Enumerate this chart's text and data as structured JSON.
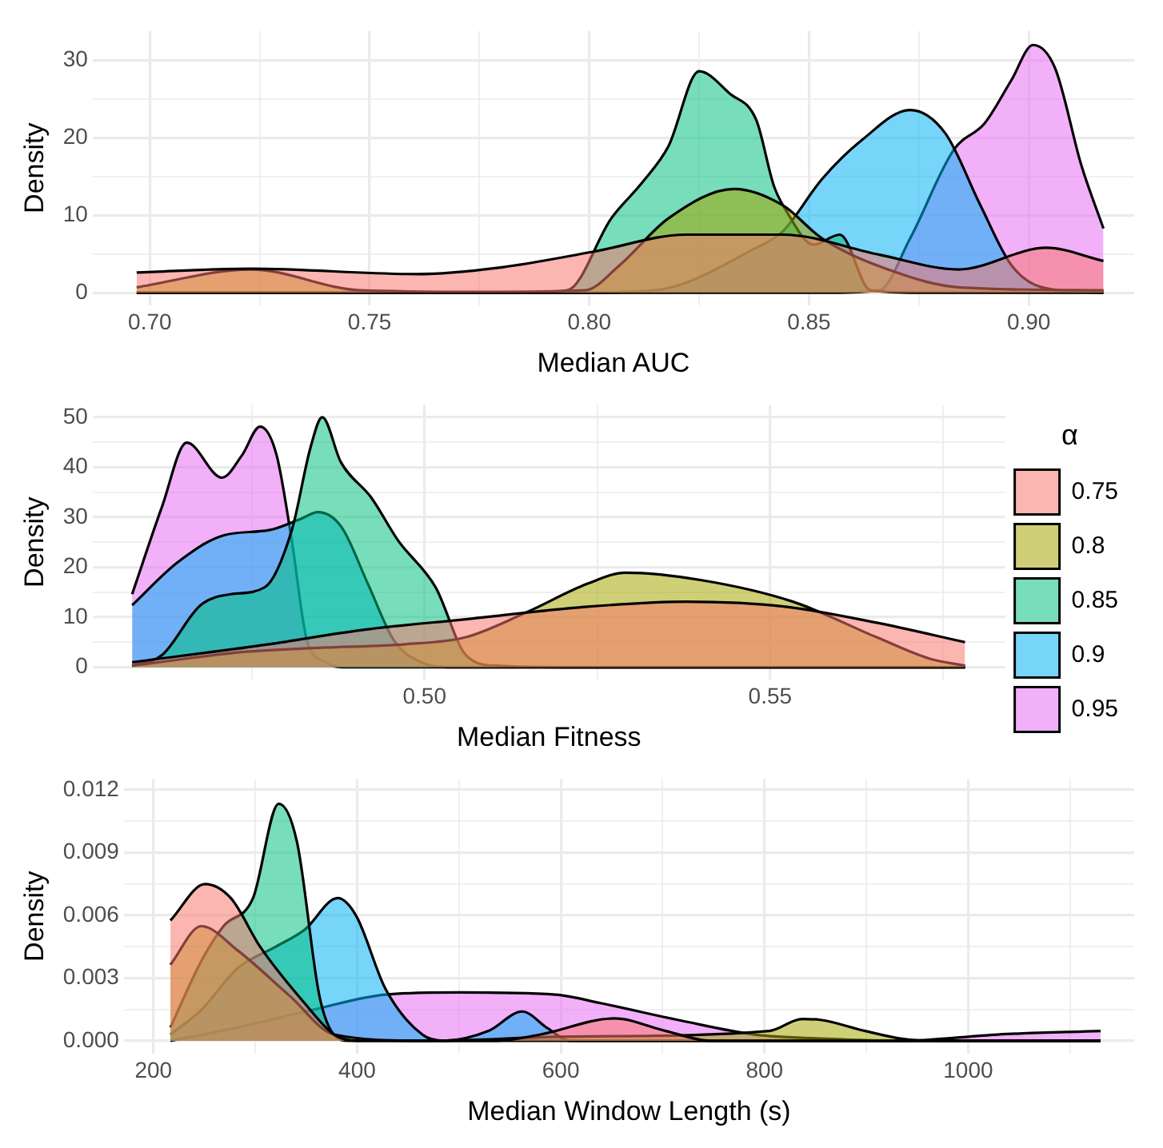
{
  "chart_data": [
    {
      "type": "area",
      "xlabel": "Median AUC",
      "ylabel": "Density",
      "grid": true,
      "xlim": [
        0.687,
        0.924
      ],
      "ylim": [
        -1.6,
        33.8
      ],
      "xticks": [
        {
          "value": 0.7,
          "label": "0.70"
        },
        {
          "value": 0.725,
          "label": null
        },
        0.75,
        {
          "value": 0.775,
          "label": null
        },
        {
          "value": 0.8,
          "label": "0.80"
        },
        {
          "value": 0.825,
          "label": null
        },
        0.85,
        {
          "value": 0.875,
          "label": null
        },
        {
          "value": 0.9,
          "label": "0.90"
        }
      ],
      "yticks": [
        0,
        {
          "value": 5,
          "label": null
        },
        10,
        {
          "value": 15,
          "label": null
        },
        20,
        {
          "value": 25,
          "label": null
        },
        30
      ],
      "series": [
        {
          "color": "#f8766d",
          "x": [
            0.697,
            0.723,
            0.761,
            0.779,
            0.801,
            0.822,
            0.844,
            0.866,
            0.884,
            0.904,
            0.917
          ],
          "values": [
            2.6,
            3.1,
            2.4,
            3.2,
            5.3,
            7.5,
            7.5,
            4.9,
            3.0,
            5.8,
            4.1
          ]
        },
        {
          "color": "#a3a500",
          "x": [
            0.697,
            0.723,
            0.748,
            0.776,
            0.799,
            0.807,
            0.818,
            0.833,
            0.844,
            0.853,
            0.869,
            0.884,
            0.917
          ],
          "values": [
            0.7,
            3.0,
            0.3,
            0.1,
            0.3,
            3.6,
            9.6,
            13.4,
            11.3,
            7.0,
            2.8,
            0.7,
            0.3
          ]
        },
        {
          "color": "#00bf7d",
          "x": [
            0.697,
            0.785,
            0.795,
            0.805,
            0.812,
            0.818,
            0.825,
            0.832,
            0.838,
            0.842,
            0.845,
            0.851,
            0.857,
            0.864,
            0.875,
            0.917
          ],
          "values": [
            0,
            0,
            0.3,
            9.6,
            14.2,
            18.9,
            28.6,
            25.7,
            22.3,
            13.8,
            10.4,
            6.2,
            7.5,
            0.3,
            0,
            0
          ]
        },
        {
          "color": "#00b0f6",
          "x": [
            0.697,
            0.8,
            0.815,
            0.838,
            0.844,
            0.853,
            0.862,
            0.873,
            0.881,
            0.889,
            0.896,
            0.903,
            0.917
          ],
          "values": [
            0,
            0,
            0.3,
            5.8,
            7.9,
            14.7,
            19.7,
            23.6,
            20.6,
            11.3,
            3.6,
            0.7,
            0
          ]
        },
        {
          "color": "#e76bf3",
          "x": [
            0.697,
            0.855,
            0.866,
            0.873,
            0.883,
            0.89,
            0.896,
            0.901,
            0.906,
            0.912,
            0.917
          ],
          "values": [
            0,
            0,
            0.3,
            7.0,
            18.5,
            21.9,
            27.4,
            32.0,
            29.0,
            16.4,
            8.3
          ]
        }
      ]
    },
    {
      "type": "area",
      "xlabel": "Median Fitness",
      "ylabel": "Density",
      "grid": true,
      "legend": "right",
      "legend_title": "α",
      "xlim": [
        0.452,
        0.584
      ],
      "ylim": [
        -2.4,
        52.4
      ],
      "xticks": [
        {
          "value": 0.475,
          "label": null
        },
        {
          "value": 0.5,
          "label": "0.50"
        },
        {
          "value": 0.525,
          "label": null
        },
        0.55,
        {
          "value": 0.575,
          "label": null
        }
      ],
      "yticks": [
        0,
        {
          "value": 5,
          "label": null
        },
        10,
        {
          "value": 15,
          "label": null
        },
        20,
        {
          "value": 25,
          "label": null
        },
        30,
        {
          "value": 35,
          "label": null
        },
        40,
        {
          "value": 45,
          "label": null
        },
        50
      ],
      "series": [
        {
          "name": "0.75",
          "color": "#f8766d",
          "x": [
            0.4577,
            0.4775,
            0.4907,
            0.506,
            0.5236,
            0.5379,
            0.5522,
            0.5654,
            0.5782
          ],
          "values": [
            1,
            4.6,
            7.4,
            9.6,
            12.1,
            13.1,
            12.1,
            8.9,
            5
          ]
        },
        {
          "name": "0.8",
          "color": "#a3a500",
          "x": [
            0.4577,
            0.4742,
            0.4852,
            0.4973,
            0.506,
            0.5148,
            0.5236,
            0.5291,
            0.5401,
            0.5533,
            0.5654,
            0.5731,
            0.5782
          ],
          "values": [
            0.3,
            3.1,
            3.9,
            4.6,
            6,
            11,
            16.7,
            18.9,
            17.4,
            13.1,
            6,
            1.7,
            0.3
          ]
        },
        {
          "name": "0.85",
          "color": "#00bf7d",
          "x": [
            0.4577,
            0.462,
            0.4676,
            0.472,
            0.4769,
            0.4808,
            0.4835,
            0.4852,
            0.4879,
            0.4923,
            0.4962,
            0.5016,
            0.506,
            0.5104,
            0.52,
            0.5782
          ],
          "values": [
            0.3,
            2.4,
            12.4,
            14.6,
            16,
            27.4,
            43.9,
            50,
            41,
            33.9,
            25.3,
            16,
            2.4,
            0.3,
            0,
            0
          ]
        },
        {
          "name": "0.9",
          "color": "#00b0f6",
          "x": [
            0.4577,
            0.4643,
            0.471,
            0.4775,
            0.482,
            0.4846,
            0.488,
            0.4918,
            0.4956,
            0.4995,
            0.504,
            0.5782
          ],
          "values": [
            12.4,
            21,
            26.4,
            27.4,
            29.6,
            31,
            28,
            16.7,
            5.3,
            1,
            0,
            0
          ]
        },
        {
          "name": "0.95",
          "color": "#e76bf3",
          "x": [
            0.4577,
            0.462,
            0.4656,
            0.4707,
            0.4736,
            0.4762,
            0.4786,
            0.4808,
            0.483,
            0.4857,
            0.488,
            0.5782
          ],
          "values": [
            14.6,
            32,
            44.9,
            37.9,
            42.4,
            48.1,
            42.4,
            25.3,
            5.3,
            1,
            0,
            0
          ]
        }
      ]
    },
    {
      "type": "area",
      "xlabel": "Median Window Length (s)",
      "ylabel": "Density",
      "grid": true,
      "xlim": [
        171,
        1163
      ],
      "ylim": [
        -0.0006,
        0.0125
      ],
      "xticks": [
        200,
        {
          "value": 300,
          "label": null
        },
        400,
        {
          "value": 500,
          "label": null
        },
        600,
        {
          "value": 700,
          "label": null
        },
        800,
        {
          "value": 900,
          "label": null
        },
        1000,
        {
          "value": 1100,
          "label": null
        }
      ],
      "yticks": [
        {
          "value": 0,
          "label": "0.000"
        },
        {
          "value": 0.0015,
          "label": null
        },
        0.003,
        {
          "value": 0.0045,
          "label": null
        },
        0.006,
        {
          "value": 0.0075,
          "label": null
        },
        0.009,
        {
          "value": 0.0105,
          "label": null
        },
        0.012
      ],
      "series": [
        {
          "color": "#f8766d",
          "x": [
            216.7,
            250.7,
            276,
            305,
            348.4,
            377.4,
            400,
            537,
            580,
            652.6,
            703,
            747,
            1130
          ],
          "values": [
            0.00575,
            0.00749,
            0.00682,
            0.00448,
            0.0018,
            0.0003,
            0,
            0,
            0.0003,
            0.00107,
            0.00047,
            0,
            0
          ]
        },
        {
          "color": "#a3a500",
          "x": [
            216.7,
            247,
            283,
            334,
            377.4,
            464,
            609,
            804.6,
            837,
            855,
            899,
            935,
            971,
            1130
          ],
          "values": [
            0.00364,
            0.00548,
            0.00431,
            0.00214,
            0.0003,
            0,
            0.0002,
            0.00047,
            0.00104,
            0.001,
            0.00047,
            0.0001,
            0,
            0
          ]
        },
        {
          "color": "#00bf7d",
          "x": [
            216.7,
            247,
            268.8,
            297.8,
            323,
            341,
            363,
            377,
            392,
            1130
          ],
          "values": [
            0.00064,
            0.00381,
            0.00548,
            0.00682,
            0.01133,
            0.0095,
            0.00214,
            0.0003,
            0,
            0
          ]
        },
        {
          "color": "#00b0f6",
          "x": [
            216.7,
            247,
            283,
            319.5,
            348.4,
            381,
            399,
            428,
            464,
            486,
            529,
            562,
            587,
            609,
            1130
          ],
          "values": [
            0.0003,
            0.00147,
            0.00348,
            0.00448,
            0.00531,
            0.00682,
            0.00598,
            0.00247,
            0.0003,
            0,
            0.00047,
            0.0014,
            0.0006,
            0,
            0
          ]
        },
        {
          "color": "#e76bf3",
          "x": [
            216.7,
            283,
            355.7,
            428,
            500.5,
            594.6,
            639,
            717.7,
            790,
            862,
            935,
            1029,
            1130
          ],
          "values": [
            0,
            0.00064,
            0.00147,
            0.00221,
            0.00231,
            0.00221,
            0.0018,
            0.00097,
            0.0003,
            0.0001,
            0,
            0.0003,
            0.00047
          ]
        }
      ]
    }
  ]
}
